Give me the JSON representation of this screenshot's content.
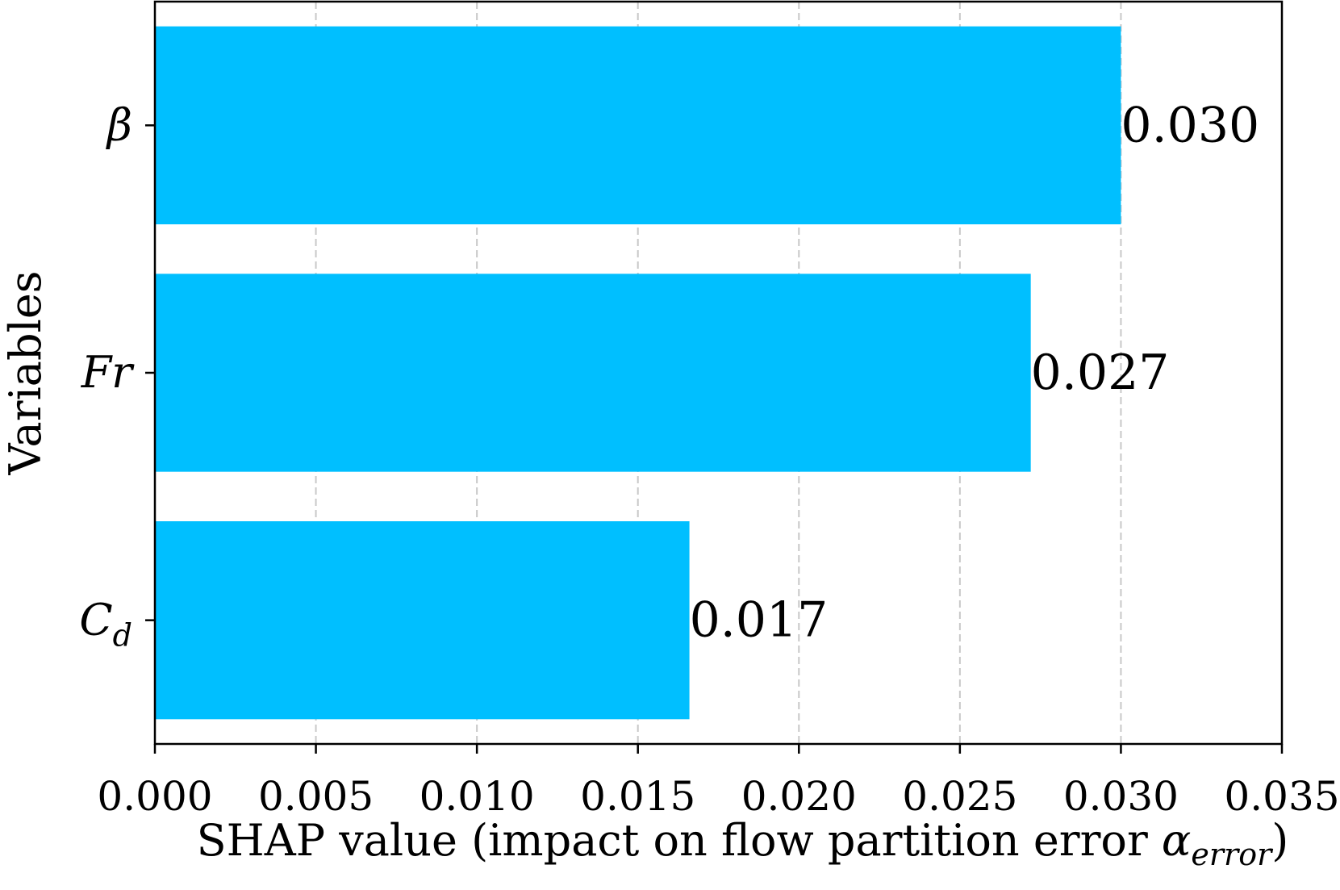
{
  "chart_data": {
    "type": "bar",
    "orientation": "horizontal",
    "categories": [
      {
        "symbol": "β",
        "sub": ""
      },
      {
        "symbol": "Fr",
        "sub": ""
      },
      {
        "symbol": "C",
        "sub": "d"
      }
    ],
    "values": [
      0.03,
      0.0272,
      0.0166
    ],
    "value_labels": [
      "0.030",
      "0.027",
      "0.017"
    ],
    "xlim": [
      0,
      0.035
    ],
    "xticks": [
      0.0,
      0.005,
      0.01,
      0.015,
      0.02,
      0.025,
      0.03,
      0.035
    ],
    "xtick_labels": [
      "0.000",
      "0.005",
      "0.010",
      "0.015",
      "0.020",
      "0.025",
      "0.030",
      "0.035"
    ],
    "xlabel": {
      "text": "SHAP value (impact on flow partition error ",
      "symbol": "α",
      "sub": "error",
      "close": ")"
    },
    "ylabel": "Variables",
    "grid": "x-dashed",
    "bar_color": "#00BFFF",
    "grid_color": "#c8c8c8"
  }
}
